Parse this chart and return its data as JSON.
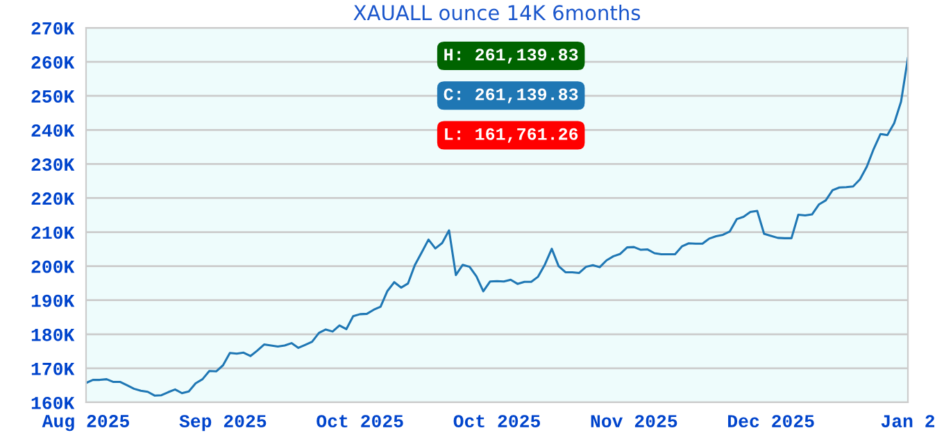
{
  "chart_data": {
    "type": "line",
    "title": "XAUALL ounce 14K 6months",
    "categories": [
      "Aug 2025",
      null,
      null,
      null,
      null,
      null,
      null,
      null,
      null,
      null,
      null,
      null,
      null,
      null,
      null,
      null,
      null,
      null,
      null,
      null,
      "Sep 2025",
      null,
      null,
      null,
      null,
      null,
      null,
      null,
      null,
      null,
      null,
      null,
      null,
      null,
      null,
      null,
      null,
      null,
      null,
      null,
      "Oct 2025",
      null,
      null,
      null,
      null,
      null,
      null,
      null,
      null,
      null,
      null,
      null,
      null,
      null,
      null,
      null,
      null,
      null,
      null,
      null,
      "Oct 2025",
      null,
      null,
      null,
      null,
      null,
      null,
      null,
      null,
      null,
      null,
      null,
      null,
      null,
      null,
      null,
      null,
      null,
      null,
      null,
      "Nov 2025",
      null,
      null,
      null,
      null,
      null,
      null,
      null,
      null,
      null,
      null,
      null,
      null,
      null,
      null,
      null,
      null,
      null,
      null,
      null,
      "Dec 2025",
      null,
      null,
      null,
      null,
      null,
      null,
      null,
      null,
      null,
      null,
      null,
      null,
      null,
      null,
      null,
      null,
      null,
      null,
      null,
      "Jan 2"
    ],
    "series": [
      {
        "color": "#1f77b4",
        "values": [
          165700,
          166600,
          166600,
          166800,
          166000,
          166000,
          165000,
          164000,
          163400,
          163100,
          162000,
          162100,
          163000,
          163800,
          162700,
          163200,
          165600,
          166800,
          169200,
          169100,
          170900,
          174500,
          174300,
          174600,
          173600,
          175200,
          177000,
          176700,
          176400,
          176700,
          177400,
          176000,
          176900,
          177800,
          180400,
          181400,
          180800,
          182600,
          181500,
          185300,
          185900,
          186000,
          187200,
          188100,
          192700,
          195300,
          193700,
          194900,
          200300,
          204000,
          207800,
          205200,
          206800,
          210500,
          197400,
          200400,
          199800,
          197000,
          192600,
          195500,
          195600,
          195500,
          196000,
          194800,
          195400,
          195400,
          196900,
          200500,
          205100,
          200000,
          198200,
          198200,
          198000,
          199800,
          200300,
          199700,
          201700,
          202900,
          203600,
          205500,
          205600,
          204800,
          204900,
          203800,
          203500,
          203500,
          203500,
          205800,
          206700,
          206600,
          206600,
          208100,
          208800,
          209200,
          210200,
          213800,
          214500,
          215900,
          216200,
          209500,
          208900,
          208300,
          208200,
          208200,
          215100,
          214900,
          215200,
          218100,
          219300,
          222300,
          223100,
          223200,
          223400,
          225500,
          229200,
          234400,
          238800,
          238500,
          242000,
          248300,
          261100
        ]
      }
    ],
    "ylim": [
      160000,
      270000
    ],
    "yticks": [
      {
        "value": 160000,
        "label": "160K"
      },
      {
        "value": 170000,
        "label": "170K"
      },
      {
        "value": 180000,
        "label": "180K"
      },
      {
        "value": 190000,
        "label": "190K"
      },
      {
        "value": 200000,
        "label": "200K"
      },
      {
        "value": 210000,
        "label": "210K"
      },
      {
        "value": 220000,
        "label": "220K"
      },
      {
        "value": 230000,
        "label": "230K"
      },
      {
        "value": 240000,
        "label": "240K"
      },
      {
        "value": 250000,
        "label": "250K"
      },
      {
        "value": 260000,
        "label": "260K"
      },
      {
        "value": 270000,
        "label": "270K"
      }
    ],
    "grid": "y",
    "annotations": [
      "H: 261,139.83",
      "C: 261,139.83",
      "L: 161,761.26"
    ]
  }
}
